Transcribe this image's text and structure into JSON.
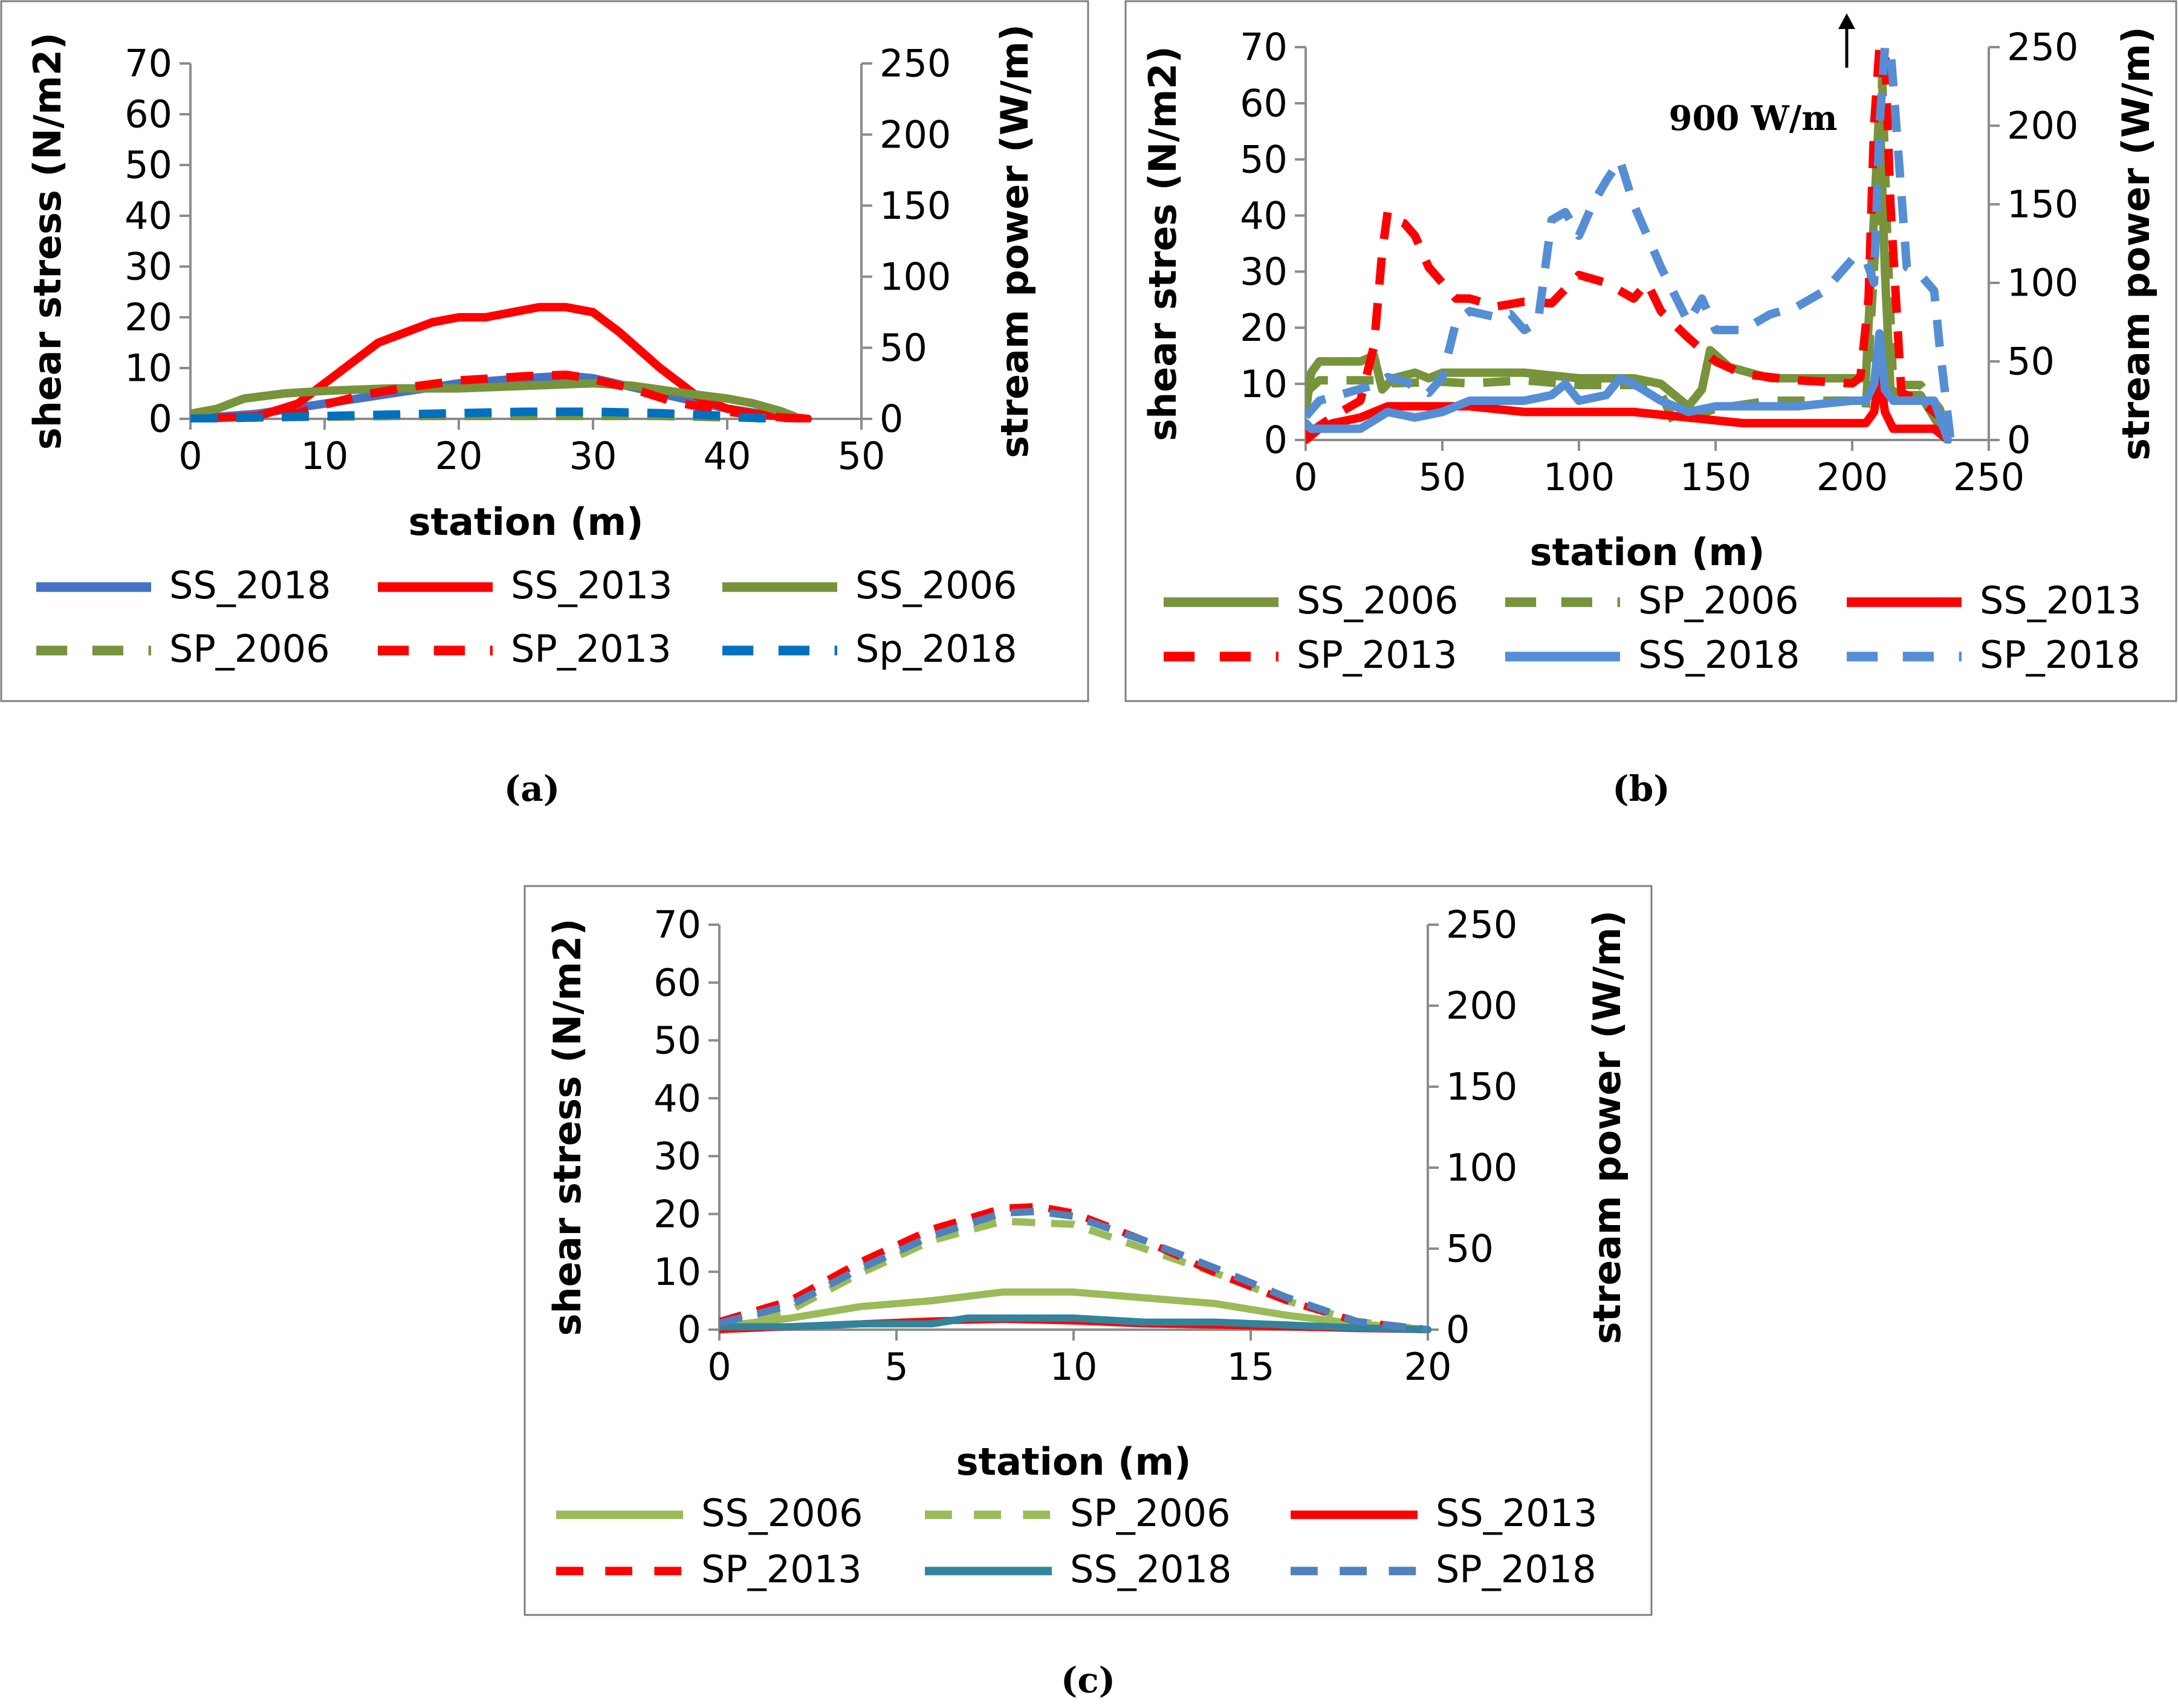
{
  "chart_data": [
    {
      "id": "a",
      "type": "line",
      "caption": "(a)",
      "xlabel": "station (m)",
      "ylabel": "shear stress (N/m2)",
      "y2label": "stream power  (W/m)",
      "xlim": [
        0,
        50
      ],
      "xticks": [
        0,
        10,
        20,
        30,
        40,
        50
      ],
      "ylim": [
        0,
        70
      ],
      "yticks": [
        0,
        10,
        20,
        30,
        40,
        50,
        60,
        70
      ],
      "y2lim": [
        0,
        250
      ],
      "y2ticks": [
        0,
        50,
        100,
        150,
        200,
        250
      ],
      "legend": [
        [
          "SS_2018",
          "SS_2013",
          "SS_2006"
        ],
        [
          "SP_2006",
          "SP_2013",
          "Sp_2018"
        ]
      ],
      "series": [
        {
          "name": "SS_2018",
          "color": "#4472C4",
          "dash": "solid",
          "axis": "left",
          "x": [
            0,
            5,
            10,
            15,
            20,
            25,
            28,
            30,
            35,
            40,
            45
          ],
          "y": [
            0,
            1,
            3,
            5,
            7,
            8,
            8.5,
            8,
            5,
            2,
            0
          ]
        },
        {
          "name": "SS_2013",
          "color": "#FF0000",
          "dash": "solid",
          "axis": "left",
          "x": [
            0,
            5,
            8,
            11,
            14,
            18,
            20,
            22,
            24,
            26,
            28,
            30,
            32,
            35,
            38,
            40,
            42,
            44,
            46
          ],
          "y": [
            0,
            0.5,
            3,
            9,
            15,
            19,
            20,
            20,
            21,
            22,
            22,
            21,
            17,
            10,
            4,
            2,
            1,
            0.5,
            0
          ]
        },
        {
          "name": "SS_2006",
          "color": "#77933C",
          "dash": "solid",
          "axis": "left",
          "x": [
            0,
            2,
            4,
            7,
            10,
            15,
            20,
            25,
            30,
            33,
            37,
            40,
            42,
            44,
            45
          ],
          "y": [
            1,
            2,
            4,
            5,
            5.5,
            6,
            6,
            6.5,
            7,
            6.5,
            5,
            4,
            3,
            1.5,
            0.5
          ]
        },
        {
          "name": "SP_2006",
          "color": "#77933C",
          "dash": "dash",
          "axis": "right",
          "x": [
            0,
            5,
            10,
            15,
            20,
            25,
            30,
            35,
            40,
            45
          ],
          "y": [
            0,
            1,
            1.5,
            2,
            2,
            2,
            2,
            2,
            1,
            0
          ]
        },
        {
          "name": "SP_2013",
          "color": "#FF0000",
          "dash": "dash",
          "axis": "right",
          "x": [
            0,
            5,
            8,
            10,
            13,
            16,
            20,
            25,
            28,
            30,
            33,
            36,
            40,
            44,
            46
          ],
          "y": [
            0,
            1,
            4,
            10,
            17,
            22,
            27,
            30,
            31,
            28,
            21,
            12,
            5,
            1,
            0
          ]
        },
        {
          "name": "Sp_2018",
          "color": "#0070C0",
          "dash": "dash",
          "axis": "right",
          "x": [
            0,
            5,
            10,
            15,
            20,
            25,
            30,
            35,
            40,
            43
          ],
          "y": [
            0,
            1,
            2,
            3,
            4,
            5,
            5,
            4,
            2,
            0
          ]
        }
      ]
    },
    {
      "id": "b",
      "type": "line",
      "caption": "(b)",
      "xlabel": "station (m)",
      "ylabel": "shear stres (N/m2)",
      "y2label": "stream power (W/m)",
      "annotation": "900 W/m",
      "xlim": [
        0,
        250
      ],
      "xticks": [
        0,
        50,
        100,
        150,
        200,
        250
      ],
      "ylim": [
        0,
        70
      ],
      "yticks": [
        0,
        10,
        20,
        30,
        40,
        50,
        60,
        70
      ],
      "y2lim": [
        0,
        250
      ],
      "y2ticks": [
        0,
        50,
        100,
        150,
        200,
        250
      ],
      "legend": [
        [
          "SS_2006",
          "SP_2006",
          "SS_2013"
        ],
        [
          "SP_2013",
          "SS_2018",
          "SP_2018"
        ]
      ],
      "series": [
        {
          "name": "SS_2006",
          "color": "#77933C",
          "dash": "solid",
          "axis": "left",
          "x": [
            0,
            2,
            5,
            10,
            20,
            25,
            28,
            32,
            40,
            45,
            50,
            60,
            80,
            100,
            110,
            120,
            130,
            135,
            140,
            145,
            148,
            155,
            170,
            180,
            200,
            205,
            208,
            210,
            212,
            214,
            218,
            225,
            230,
            235
          ],
          "y": [
            5,
            12,
            14,
            14,
            14,
            15,
            9,
            11,
            12,
            11,
            12,
            12,
            12,
            11,
            11,
            11,
            10,
            8,
            6,
            9,
            16,
            13,
            11,
            11,
            11,
            11,
            40,
            60,
            30,
            9,
            8,
            8,
            4,
            0
          ]
        },
        {
          "name": "SP_2006",
          "color": "#77933C",
          "dash": "dash",
          "axis": "right",
          "x": [
            0,
            5,
            15,
            25,
            30,
            50,
            60,
            80,
            100,
            120,
            130,
            135,
            150,
            170,
            200,
            205,
            209,
            211,
            213,
            215,
            225,
            232,
            236
          ],
          "y": [
            30,
            38,
            38,
            38,
            36,
            37,
            36,
            38,
            35,
            35,
            30,
            10,
            20,
            25,
            25,
            20,
            140,
            230,
            120,
            35,
            35,
            20,
            0
          ]
        },
        {
          "name": "SS_2013",
          "color": "#FF0000",
          "dash": "solid",
          "axis": "left",
          "x": [
            0,
            5,
            10,
            20,
            30,
            40,
            60,
            80,
            100,
            120,
            140,
            160,
            180,
            200,
            205,
            208,
            210,
            212,
            215,
            220,
            230,
            235
          ],
          "y": [
            0,
            2,
            3,
            4,
            6,
            6,
            6,
            5,
            5,
            5,
            4,
            3,
            3,
            3,
            3,
            5,
            12,
            5,
            2,
            2,
            2,
            0
          ]
        },
        {
          "name": "SP_2013",
          "color": "#FF0000",
          "dash": "dash",
          "axis": "right",
          "x": [
            0,
            10,
            20,
            25,
            28,
            30,
            33,
            36,
            40,
            45,
            50,
            55,
            60,
            70,
            80,
            90,
            100,
            110,
            115,
            120,
            125,
            130,
            140,
            150,
            160,
            170,
            180,
            190,
            200,
            203,
            206,
            208,
            210,
            212,
            214,
            218,
            225,
            232,
            236
          ],
          "y": [
            3,
            15,
            25,
            60,
            120,
            145,
            140,
            138,
            130,
            110,
            100,
            90,
            90,
            85,
            88,
            87,
            105,
            100,
            95,
            90,
            100,
            82,
            65,
            50,
            42,
            40,
            38,
            37,
            36,
            40,
            90,
            200,
            250,
            250,
            150,
            30,
            25,
            15,
            0
          ]
        },
        {
          "name": "SS_2018",
          "color": "#558ED5",
          "dash": "solid",
          "axis": "left",
          "x": [
            0,
            2,
            5,
            10,
            20,
            30,
            40,
            50,
            60,
            70,
            80,
            90,
            95,
            100,
            110,
            115,
            120,
            130,
            140,
            150,
            160,
            180,
            200,
            205,
            208,
            210,
            212,
            215,
            220,
            230,
            235
          ],
          "y": [
            3,
            2,
            2,
            2,
            2,
            5,
            4,
            5,
            7,
            7,
            7,
            8,
            10,
            7,
            8,
            11,
            10,
            7,
            5,
            6,
            6,
            6,
            7,
            7,
            10,
            19,
            9,
            7,
            7,
            7,
            0
          ]
        },
        {
          "name": "SP_2018",
          "color": "#558ED5",
          "dash": "dash",
          "axis": "right",
          "x": [
            0,
            5,
            15,
            25,
            30,
            35,
            45,
            50,
            55,
            60,
            65,
            70,
            75,
            80,
            85,
            90,
            95,
            100,
            105,
            110,
            115,
            120,
            125,
            130,
            140,
            145,
            150,
            160,
            170,
            180,
            190,
            195,
            200,
            205,
            208,
            210,
            212,
            214,
            220,
            225,
            230,
            232,
            236
          ],
          "y": [
            15,
            25,
            30,
            35,
            40,
            38,
            30,
            40,
            75,
            82,
            80,
            78,
            80,
            70,
            75,
            140,
            145,
            130,
            150,
            165,
            178,
            150,
            130,
            110,
            75,
            90,
            70,
            70,
            80,
            85,
            95,
            105,
            115,
            115,
            100,
            200,
            250,
            250,
            110,
            105,
            95,
            60,
            0
          ]
        }
      ]
    },
    {
      "id": "c",
      "type": "line",
      "caption": "(c)",
      "xlabel": "station (m)",
      "ylabel": "shear stress (N/m2)",
      "y2label": "stream power  (W/m)",
      "xlim": [
        0,
        20
      ],
      "xticks": [
        0,
        5,
        10,
        15,
        20
      ],
      "ylim": [
        0,
        70
      ],
      "yticks": [
        0,
        10,
        20,
        30,
        40,
        50,
        60,
        70
      ],
      "y2lim": [
        0,
        250
      ],
      "y2ticks": [
        0,
        50,
        100,
        150,
        200,
        250
      ],
      "legend": [
        [
          "SS_2006",
          "SP_2006",
          "SS_2013"
        ],
        [
          "SP_2013",
          "SS_2018",
          "SP_2018"
        ]
      ],
      "series": [
        {
          "name": "SS_2006",
          "color": "#9BBB59",
          "dash": "solid",
          "axis": "left",
          "x": [
            0,
            2,
            4,
            6,
            8,
            10,
            12,
            14,
            16,
            18,
            20
          ],
          "y": [
            0.5,
            2,
            4,
            5,
            6.5,
            6.5,
            5.5,
            4.5,
            2.5,
            1,
            0
          ]
        },
        {
          "name": "SP_2006",
          "color": "#9BBB59",
          "dash": "dash",
          "axis": "right",
          "x": [
            0,
            2,
            4,
            6,
            8,
            10,
            12,
            14,
            16,
            18,
            20
          ],
          "y": [
            2,
            12,
            35,
            55,
            67,
            65,
            50,
            35,
            18,
            5,
            0
          ]
        },
        {
          "name": "SS_2013",
          "color": "#FF0000",
          "dash": "solid",
          "axis": "left",
          "x": [
            0,
            2,
            4,
            6,
            8,
            10,
            12,
            14,
            16,
            18,
            20
          ],
          "y": [
            0,
            0.5,
            1,
            1.5,
            1.8,
            1.5,
            1,
            0.8,
            0.5,
            0.2,
            0
          ]
        },
        {
          "name": "SP_2013",
          "color": "#FF0000",
          "dash": "dash",
          "axis": "right",
          "x": [
            0,
            2,
            4,
            6,
            8,
            9,
            10,
            12,
            14,
            16,
            18,
            20
          ],
          "y": [
            5,
            18,
            42,
            62,
            75,
            76,
            72,
            55,
            35,
            18,
            5,
            0
          ]
        },
        {
          "name": "SS_2018",
          "color": "#31849B",
          "dash": "solid",
          "axis": "left",
          "x": [
            0,
            2,
            4,
            6,
            7,
            10,
            12,
            14,
            16,
            18,
            20
          ],
          "y": [
            0.5,
            0.5,
            1,
            1,
            2,
            2,
            1.3,
            1.3,
            0.8,
            0.3,
            0
          ]
        },
        {
          "name": "SP_2018",
          "color": "#4F81BD",
          "dash": "dash",
          "axis": "right",
          "x": [
            0,
            2,
            4,
            6,
            8,
            9,
            10,
            12,
            14,
            16,
            18,
            20
          ],
          "y": [
            4,
            15,
            38,
            58,
            72,
            73,
            70,
            55,
            38,
            20,
            5,
            0
          ]
        }
      ]
    }
  ]
}
